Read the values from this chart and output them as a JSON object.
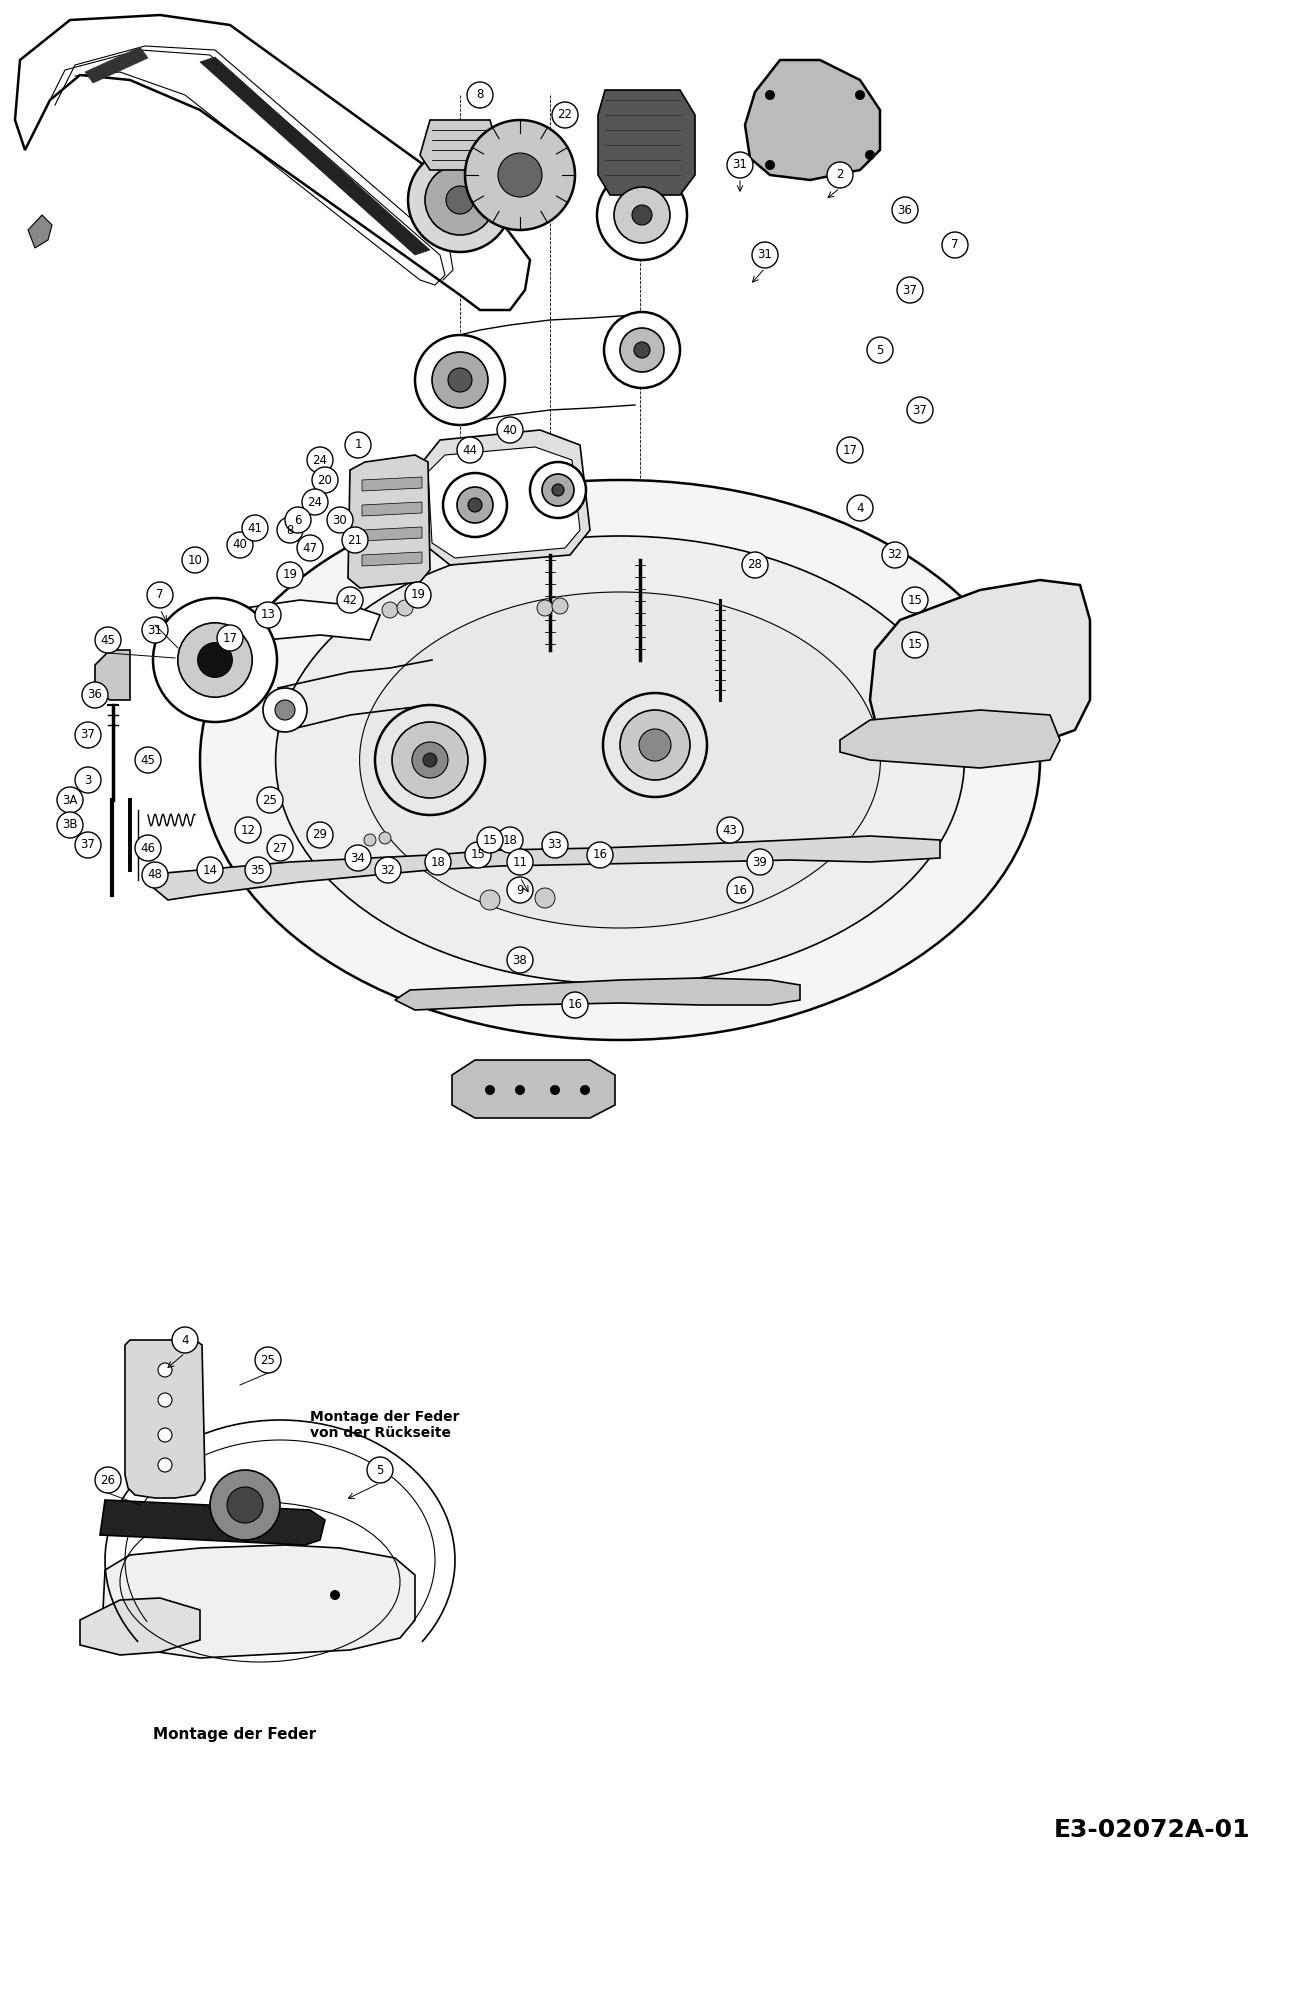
{
  "background_color": "#ffffff",
  "figure_width": 13.05,
  "figure_height": 20.0,
  "dpi": 100,
  "diagram_code": "E3-02072A-01",
  "text_montage_feder": "Montage der Feder",
  "text_montage_feder_rueck": "Montage der Feder\nvon der Rückseite"
}
